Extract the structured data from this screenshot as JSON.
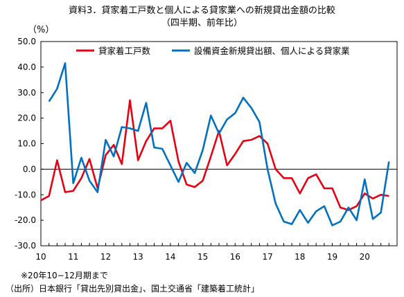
{
  "title": "資料3．貸家着工戸数と個人による貸家業への新規貸出金額の比較",
  "subtitle": "（四半期、前年比）",
  "unit_label": "（%）",
  "notes": [
    "※20年10−12月期まで",
    "（出所）日本銀行「貸出先別貸出金」、国土交通省「建築着工統計」"
  ],
  "chart_data": {
    "type": "line",
    "title": "資料3．貸家着工戸数と個人による貸家業への新規貸出金額の比較",
    "subtitle": "（四半期、前年比）",
    "ylabel": "（%）",
    "xlabel": "",
    "ylim": [
      -30,
      50
    ],
    "yticks": [
      -30,
      -20,
      -10,
      0,
      10,
      20,
      30,
      40,
      50
    ],
    "ytick_labels": [
      "-30.0",
      "-20.0",
      "-10.0",
      "0.0",
      "10.0",
      "20.0",
      "30.0",
      "40.0",
      "50.0"
    ],
    "xlim": [
      0,
      44
    ],
    "xtick_labels": [
      "10",
      "11",
      "12",
      "13",
      "14",
      "15",
      "16",
      "17",
      "18",
      "19",
      "20"
    ],
    "grid": false,
    "legend": "top",
    "series": [
      {
        "name": "貸家着工戸数",
        "color": "#e60012",
        "values": [
          -12.2,
          -10.5,
          3.5,
          -9.0,
          -8.5,
          -3.5,
          4.0,
          -7.5,
          5.5,
          9.5,
          2.0,
          27.0,
          3.5,
          11.0,
          16.0,
          16.0,
          19.0,
          3.0,
          -6.0,
          -7.0,
          -4.5,
          5.0,
          15.0,
          1.5,
          6.0,
          11.0,
          11.5,
          13.0,
          10.0,
          0.0,
          -3.5,
          -3.5,
          -9.5,
          -3.5,
          -2.0,
          -7.5,
          -7.5,
          -15.0,
          -16.0,
          -14.5,
          -9.5,
          -11.5,
          -10.0,
          -10.5
        ]
      },
      {
        "name": "設備資金新規貸出額、個人による貸家業",
        "color": "#0070c0",
        "values": [
          null,
          26.5,
          31.5,
          41.5,
          -5.5,
          4.5,
          -4.5,
          -9.0,
          11.5,
          5.0,
          16.5,
          16.0,
          15.0,
          26.0,
          8.5,
          8.0,
          1.5,
          -5.0,
          2.5,
          -1.5,
          7.5,
          21.0,
          14.0,
          19.5,
          22.0,
          28.0,
          24.0,
          18.5,
          0.0,
          -13.5,
          -20.5,
          -21.5,
          -16.0,
          -21.0,
          -16.5,
          -14.5,
          -22.0,
          -20.5,
          -15.0,
          -20.0,
          -4.0,
          -19.5,
          -17.0,
          3.0
        ]
      }
    ]
  }
}
